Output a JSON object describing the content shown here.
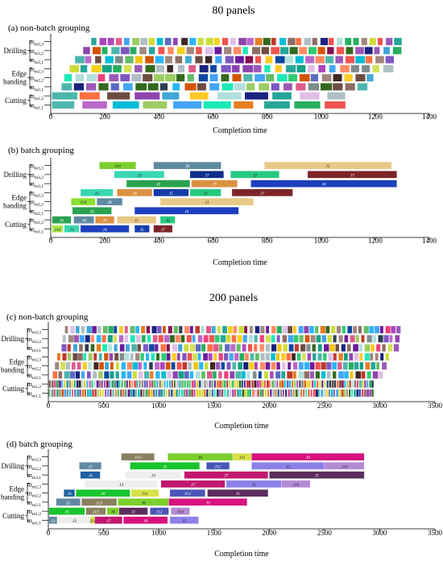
{
  "section_titles": [
    "80 panels",
    "200 panels"
  ],
  "chart_data": [
    {
      "type": "gantt",
      "panel_label": "(a) non-batch grouping",
      "xlabel": "Completion time",
      "xlim": [
        0,
        1400
      ],
      "xticks": [
        "0",
        "200",
        "400",
        "600",
        "800",
        "1000",
        "1200",
        "1400"
      ],
      "groups": [
        {
          "label": "Drilling",
          "machines": [
            "m3,3",
            "m3,2",
            "m3,1"
          ]
        },
        {
          "label": "Edge banding",
          "label_lines": [
            "Edge",
            "banding"
          ],
          "machines": [
            "m2,3",
            "m2,2",
            "m2,1"
          ]
        },
        {
          "label": "Cutting",
          "machines": [
            "m1,2",
            "m1,1"
          ]
        }
      ],
      "pattern": {
        "rows": [
          {
            "start": 150,
            "end": 1300,
            "task": 38
          },
          {
            "start": 120,
            "end": 1300,
            "task": 34
          },
          {
            "start": 90,
            "end": 1275,
            "task": 32
          },
          {
            "start": 70,
            "end": 1270,
            "task": 30
          },
          {
            "start": 50,
            "end": 1210,
            "task": 28
          },
          {
            "start": 40,
            "end": 1180,
            "task": 25
          },
          {
            "start": 5,
            "end": 1125,
            "task": 11
          },
          {
            "start": 5,
            "end": 1125,
            "task": 10
          }
        ]
      }
    },
    {
      "type": "gantt",
      "panel_label": "(b) batch grouping",
      "xlabel": "Completion time",
      "xlim": [
        0,
        1400
      ],
      "xticks": [
        "0",
        "200",
        "400",
        "600",
        "800",
        "1000",
        "1200",
        "1400"
      ],
      "groups": [
        {
          "label": "Drilling",
          "machines": [
            "m3,3",
            "m3,2",
            "m3,1"
          ]
        },
        {
          "label": "Edge banding",
          "label_lines": [
            "Edge",
            "banding"
          ],
          "machines": [
            "m2,3",
            "m2,2",
            "m2,1"
          ]
        },
        {
          "label": "Cutting",
          "machines": [
            "m1,2",
            "m1,1"
          ]
        }
      ],
      "bars": [
        {
          "row": 0,
          "start": 180,
          "end": 315,
          "label": "J10",
          "color": "#7ccf2d"
        },
        {
          "row": 0,
          "start": 380,
          "end": 630,
          "label": "J8",
          "color": "#5f8aa2"
        },
        {
          "row": 0,
          "start": 790,
          "end": 1260,
          "label": "J1",
          "color": "#e8c987"
        },
        {
          "row": 1,
          "start": 235,
          "end": 420,
          "label": "J3",
          "color": "#3ad7b3"
        },
        {
          "row": 1,
          "start": 515,
          "end": 640,
          "label": "J7",
          "color": "#0d2f8a"
        },
        {
          "row": 1,
          "start": 665,
          "end": 845,
          "label": "J2",
          "color": "#27c97f"
        },
        {
          "row": 1,
          "start": 950,
          "end": 1280,
          "label": "J7",
          "color": "#7d2429"
        },
        {
          "row": 2,
          "start": 280,
          "end": 515,
          "label": "J6",
          "color": "#2ba24f"
        },
        {
          "row": 2,
          "start": 520,
          "end": 690,
          "label": "J9",
          "color": "#db9140"
        },
        {
          "row": 2,
          "start": 740,
          "end": 1280,
          "label": "J4",
          "color": "#1c3fbd"
        },
        {
          "row": 3,
          "start": 110,
          "end": 230,
          "label": "J3",
          "color": "#3ad7b3"
        },
        {
          "row": 3,
          "start": 245,
          "end": 375,
          "label": "J9",
          "color": "#db9140"
        },
        {
          "row": 3,
          "start": 380,
          "end": 510,
          "label": "J5",
          "color": "#143cab"
        },
        {
          "row": 3,
          "start": 515,
          "end": 630,
          "label": "J2",
          "color": "#27c97f"
        },
        {
          "row": 3,
          "start": 670,
          "end": 895,
          "label": "J7",
          "color": "#7d2429"
        },
        {
          "row": 4,
          "start": 75,
          "end": 165,
          "label": "J10",
          "color": "#8be02f"
        },
        {
          "row": 4,
          "start": 170,
          "end": 265,
          "label": "J8",
          "color": "#5f8aa2"
        },
        {
          "row": 4,
          "start": 405,
          "end": 750,
          "label": "J1",
          "color": "#e8c987"
        },
        {
          "row": 5,
          "start": 80,
          "end": 225,
          "label": "J6",
          "color": "#2ba24f"
        },
        {
          "row": 5,
          "start": 310,
          "end": 695,
          "label": "J4",
          "color": "#1c3fbd"
        },
        {
          "row": 6,
          "start": 5,
          "end": 75,
          "label": "J6",
          "color": "#2ba24f"
        },
        {
          "row": 6,
          "start": 85,
          "end": 160,
          "label": "J8",
          "color": "#5f8aa2"
        },
        {
          "row": 6,
          "start": 165,
          "end": 235,
          "label": "J9",
          "color": "#db9140"
        },
        {
          "row": 6,
          "start": 245,
          "end": 390,
          "label": "J1",
          "color": "#e8c987"
        },
        {
          "row": 6,
          "start": 405,
          "end": 460,
          "label": "J2",
          "color": "#27c97f"
        },
        {
          "row": 7,
          "start": 5,
          "end": 45,
          "label": "J10",
          "color": "#a6e84b"
        },
        {
          "row": 7,
          "start": 50,
          "end": 105,
          "label": "J3",
          "color": "#3ad7b3"
        },
        {
          "row": 7,
          "start": 110,
          "end": 290,
          "label": "J4",
          "color": "#1c3fbd"
        },
        {
          "row": 7,
          "start": 310,
          "end": 365,
          "label": "J5",
          "color": "#143cab"
        },
        {
          "row": 7,
          "start": 380,
          "end": 450,
          "label": "J7",
          "color": "#7d2429"
        }
      ]
    },
    {
      "type": "gantt",
      "panel_label": "(c) non-batch grouping",
      "xlabel": "Completion time",
      "xlim": [
        0,
        3500
      ],
      "xticks": [
        "0",
        "500",
        "1000",
        "1500",
        "2000",
        "2500",
        "3000",
        "3500"
      ],
      "groups": [
        {
          "label": "Drilling",
          "machines": [
            "m3,3",
            "m3,2",
            "m3,1"
          ]
        },
        {
          "label": "Edge banding",
          "label_lines": [
            "Edge",
            "banding"
          ],
          "machines": [
            "m2,3",
            "m2,2",
            "m2,1"
          ]
        },
        {
          "label": "Cutting",
          "machines": [
            "m1,2",
            "m1,1"
          ]
        }
      ],
      "pattern": {
        "rows": [
          {
            "start": 150,
            "end": 3200,
            "task": 62
          },
          {
            "start": 130,
            "end": 3190,
            "task": 60
          },
          {
            "start": 120,
            "end": 3180,
            "task": 58
          },
          {
            "start": 80,
            "end": 3100,
            "task": 64
          },
          {
            "start": 60,
            "end": 3070,
            "task": 60
          },
          {
            "start": 40,
            "end": 3040,
            "task": 58
          },
          {
            "start": 5,
            "end": 2950,
            "task": 130
          },
          {
            "start": 5,
            "end": 2950,
            "task": 128
          }
        ]
      }
    },
    {
      "type": "gantt",
      "panel_label": "(d) batch grouping",
      "xlabel": "Completion time",
      "xlim": [
        0,
        3500
      ],
      "xticks": [
        "0",
        "500",
        "1000",
        "1500",
        "2000",
        "2500",
        "3000",
        "3500"
      ],
      "groups": [
        {
          "label": "Drilling",
          "machines": [
            "m3,3",
            "m3,2",
            "m3,1"
          ]
        },
        {
          "label": "Edge banding",
          "label_lines": [
            "Edge",
            "banding"
          ],
          "machines": [
            "m2,3",
            "m2,2",
            "m2,1"
          ]
        },
        {
          "label": "Cutting",
          "machines": [
            "m1,2",
            "m1,1"
          ]
        }
      ],
      "bars": [
        {
          "row": 0,
          "start": 660,
          "end": 960,
          "label": "J13",
          "color": "#8a8060"
        },
        {
          "row": 0,
          "start": 1080,
          "end": 1670,
          "label": "J8",
          "color": "#7ccf2d"
        },
        {
          "row": 0,
          "start": 1670,
          "end": 1840,
          "label": "J11",
          "color": "#d8e04a"
        },
        {
          "row": 0,
          "start": 1840,
          "end": 2860,
          "label": "J9",
          "color": "#d6137e"
        },
        {
          "row": 1,
          "start": 280,
          "end": 480,
          "label": "J2",
          "color": "#5f8aa2"
        },
        {
          "row": 1,
          "start": 740,
          "end": 1370,
          "label": "J6",
          "color": "#19c42d"
        },
        {
          "row": 1,
          "start": 1430,
          "end": 1640,
          "label": "J12",
          "color": "#4a56b8"
        },
        {
          "row": 1,
          "start": 1840,
          "end": 2500,
          "label": "J5",
          "color": "#8d80ea"
        },
        {
          "row": 1,
          "start": 2500,
          "end": 2860,
          "label": "J10",
          "color": "#b38bd4"
        },
        {
          "row": 2,
          "start": 290,
          "end": 470,
          "label": "J4",
          "color": "#1f5fa0"
        },
        {
          "row": 2,
          "start": 700,
          "end": 1200,
          "label": "J3",
          "color": "#eeeeee"
        },
        {
          "row": 2,
          "start": 1230,
          "end": 1990,
          "label": "J7",
          "color": "#c2186f"
        },
        {
          "row": 2,
          "start": 2000,
          "end": 2860,
          "label": "J1",
          "color": "#5b2c5e"
        },
        {
          "row": 3,
          "start": 330,
          "end": 990,
          "label": "J3",
          "color": "#eeeeee"
        },
        {
          "row": 3,
          "start": 1020,
          "end": 1600,
          "label": "J7",
          "color": "#c2186f"
        },
        {
          "row": 3,
          "start": 1610,
          "end": 2110,
          "label": "J5",
          "color": "#8d80ea"
        },
        {
          "row": 3,
          "start": 2110,
          "end": 2370,
          "label": "J10",
          "color": "#b38bd4"
        },
        {
          "row": 4,
          "start": 140,
          "end": 240,
          "label": "J4",
          "color": "#1f5fa0"
        },
        {
          "row": 4,
          "start": 250,
          "end": 740,
          "label": "J6",
          "color": "#19c42d"
        },
        {
          "row": 4,
          "start": 750,
          "end": 1000,
          "label": "J11",
          "color": "#d8e04a"
        },
        {
          "row": 4,
          "start": 1100,
          "end": 1420,
          "label": "J12",
          "color": "#4a56b8"
        },
        {
          "row": 4,
          "start": 1440,
          "end": 1990,
          "label": "J1",
          "color": "#5b2c5e"
        },
        {
          "row": 5,
          "start": 70,
          "end": 290,
          "label": "J2",
          "color": "#5f8aa2"
        },
        {
          "row": 5,
          "start": 300,
          "end": 620,
          "label": "J13",
          "color": "#8a8060"
        },
        {
          "row": 5,
          "start": 630,
          "end": 1090,
          "label": "J8",
          "color": "#7ccf2d"
        },
        {
          "row": 5,
          "start": 1090,
          "end": 1800,
          "label": "J9",
          "color": "#d6137e"
        },
        {
          "row": 6,
          "start": 5,
          "end": 330,
          "label": "J6",
          "color": "#19c42d"
        },
        {
          "row": 6,
          "start": 340,
          "end": 520,
          "label": "J13",
          "color": "#8a8060"
        },
        {
          "row": 6,
          "start": 530,
          "end": 640,
          "label": "J8",
          "color": "#7ccf2d"
        },
        {
          "row": 6,
          "start": 640,
          "end": 900,
          "label": "J1",
          "color": "#5b2c5e"
        },
        {
          "row": 6,
          "start": 920,
          "end": 1090,
          "label": "J12",
          "color": "#4a56b8"
        },
        {
          "row": 6,
          "start": 1110,
          "end": 1280,
          "label": "J10",
          "color": "#b38bd4"
        },
        {
          "row": 7,
          "start": 5,
          "end": 80,
          "label": "J2",
          "color": "#5f8aa2"
        },
        {
          "row": 7,
          "start": 90,
          "end": 380,
          "label": "J3",
          "color": "#eeeeee"
        },
        {
          "row": 7,
          "start": 380,
          "end": 420,
          "label": "J11",
          "color": "#d8e04a"
        },
        {
          "row": 7,
          "start": 420,
          "end": 670,
          "label": "J7",
          "color": "#c2186f"
        },
        {
          "row": 7,
          "start": 680,
          "end": 1080,
          "label": "J9",
          "color": "#d6137e"
        },
        {
          "row": 7,
          "start": 1100,
          "end": 1360,
          "label": "J5",
          "color": "#8d80ea"
        }
      ]
    }
  ],
  "colors": {
    "palette": [
      "#e05a8c",
      "#f2d21b",
      "#3fa7d6",
      "#9b59b6",
      "#2ecc71",
      "#1a237e",
      "#e67e22",
      "#16a085",
      "#c0392b",
      "#7f8c8d",
      "#8e44ad",
      "#27ae60",
      "#d35400",
      "#2c3e50",
      "#f1c40f",
      "#00bcd4",
      "#ff7043",
      "#6d4c41",
      "#b0bec5",
      "#5c6bc0",
      "#66bb6a",
      "#ec407a",
      "#26a69a",
      "#ab47bc",
      "#ffca28",
      "#8d6e63",
      "#42a5f5",
      "#9ccc65",
      "#ef5350",
      "#7e57c2",
      "#d4e157",
      "#29b6f6",
      "#ff8a65",
      "#4db6ac",
      "#ba68c8",
      "#a1887f",
      "#1de9b6",
      "#6a1b9a",
      "#cddc39",
      "#0d47a1",
      "#880e4f",
      "#33691e",
      "#e1bee7",
      "#b2dfdb",
      "#3e2723"
    ]
  }
}
